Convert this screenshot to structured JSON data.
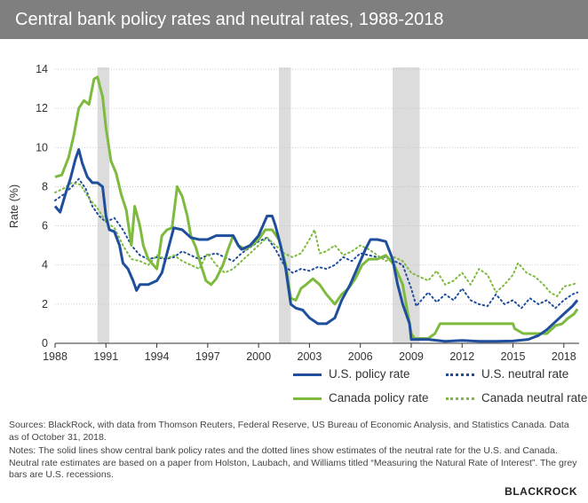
{
  "header": {
    "title": "Central bank policy rates and neutral rates, 1988-2018"
  },
  "chart_data": {
    "type": "line",
    "title": "Central bank policy rates and neutral rates, 1988-2018",
    "ylabel": "Rate (%)",
    "xlabel": "",
    "xlim": [
      1988,
      2018.9
    ],
    "ylim": [
      0,
      14
    ],
    "x_ticks": [
      1988,
      1991,
      1994,
      1997,
      2000,
      2003,
      2006,
      2009,
      2012,
      2015,
      2018
    ],
    "y_ticks": [
      0,
      2,
      4,
      6,
      8,
      10,
      12,
      14
    ],
    "grid": "horizontal",
    "recessions": [
      [
        1990.5,
        1991.2
      ],
      [
        2001.2,
        2001.9
      ],
      [
        2007.9,
        2009.5
      ]
    ],
    "series": [
      {
        "name": "U.S. policy rate",
        "color": "#1f4e9c",
        "style": "solid",
        "points": [
          [
            1988,
            7.0
          ],
          [
            1988.3,
            6.7
          ],
          [
            1988.6,
            7.6
          ],
          [
            1988.9,
            8.4
          ],
          [
            1989.2,
            9.4
          ],
          [
            1989.4,
            9.9
          ],
          [
            1989.6,
            9.2
          ],
          [
            1989.9,
            8.5
          ],
          [
            1990.2,
            8.2
          ],
          [
            1990.5,
            8.2
          ],
          [
            1990.8,
            8.0
          ],
          [
            1991.0,
            6.5
          ],
          [
            1991.2,
            5.8
          ],
          [
            1991.5,
            5.7
          ],
          [
            1991.8,
            5.0
          ],
          [
            1992.0,
            4.1
          ],
          [
            1992.3,
            3.8
          ],
          [
            1992.6,
            3.2
          ],
          [
            1992.8,
            2.7
          ],
          [
            1993.0,
            3.0
          ],
          [
            1993.5,
            3.0
          ],
          [
            1994.0,
            3.2
          ],
          [
            1994.3,
            3.6
          ],
          [
            1994.6,
            4.6
          ],
          [
            1995.0,
            5.9
          ],
          [
            1995.5,
            5.8
          ],
          [
            1996.0,
            5.4
          ],
          [
            1996.5,
            5.3
          ],
          [
            1997.0,
            5.3
          ],
          [
            1997.5,
            5.5
          ],
          [
            1998.0,
            5.5
          ],
          [
            1998.5,
            5.5
          ],
          [
            1998.8,
            5.0
          ],
          [
            1999.0,
            4.8
          ],
          [
            1999.5,
            5.0
          ],
          [
            2000.0,
            5.5
          ],
          [
            2000.5,
            6.5
          ],
          [
            2000.8,
            6.5
          ],
          [
            2001.0,
            6.0
          ],
          [
            2001.3,
            5.0
          ],
          [
            2001.6,
            3.8
          ],
          [
            2001.9,
            2.0
          ],
          [
            2002.2,
            1.8
          ],
          [
            2002.6,
            1.7
          ],
          [
            2003.0,
            1.3
          ],
          [
            2003.5,
            1.0
          ],
          [
            2004.0,
            1.0
          ],
          [
            2004.5,
            1.3
          ],
          [
            2004.9,
            2.2
          ],
          [
            2005.4,
            3.0
          ],
          [
            2005.9,
            4.0
          ],
          [
            2006.3,
            4.8
          ],
          [
            2006.6,
            5.3
          ],
          [
            2007.0,
            5.3
          ],
          [
            2007.5,
            5.2
          ],
          [
            2007.9,
            4.3
          ],
          [
            2008.2,
            3.0
          ],
          [
            2008.5,
            2.0
          ],
          [
            2008.9,
            1.0
          ],
          [
            2009.0,
            0.2
          ],
          [
            2010,
            0.2
          ],
          [
            2011,
            0.1
          ],
          [
            2012,
            0.15
          ],
          [
            2013,
            0.1
          ],
          [
            2014,
            0.1
          ],
          [
            2015,
            0.12
          ],
          [
            2015.9,
            0.2
          ],
          [
            2016.5,
            0.4
          ],
          [
            2017.0,
            0.7
          ],
          [
            2017.5,
            1.1
          ],
          [
            2018.0,
            1.5
          ],
          [
            2018.5,
            1.9
          ],
          [
            2018.8,
            2.2
          ]
        ]
      },
      {
        "name": "U.S. neutral rate",
        "color": "#1f4e9c",
        "style": "dotted",
        "points": [
          [
            1988,
            7.3
          ],
          [
            1988.5,
            7.6
          ],
          [
            1989.0,
            8.0
          ],
          [
            1989.4,
            8.4
          ],
          [
            1989.8,
            7.9
          ],
          [
            1990.2,
            7.0
          ],
          [
            1990.6,
            6.5
          ],
          [
            1991.0,
            6.2
          ],
          [
            1991.5,
            6.4
          ],
          [
            1992.0,
            5.8
          ],
          [
            1992.5,
            5.0
          ],
          [
            1993.0,
            4.5
          ],
          [
            1993.5,
            4.3
          ],
          [
            1994.0,
            4.4
          ],
          [
            1994.5,
            4.3
          ],
          [
            1995.0,
            4.4
          ],
          [
            1995.5,
            4.7
          ],
          [
            1996.0,
            4.5
          ],
          [
            1996.5,
            4.3
          ],
          [
            1997.0,
            4.5
          ],
          [
            1997.5,
            4.6
          ],
          [
            1998.0,
            4.4
          ],
          [
            1998.5,
            4.2
          ],
          [
            1999.0,
            4.6
          ],
          [
            1999.5,
            4.9
          ],
          [
            2000.0,
            5.2
          ],
          [
            2000.5,
            5.4
          ],
          [
            2001.0,
            4.8
          ],
          [
            2001.5,
            4.0
          ],
          [
            2002.0,
            3.6
          ],
          [
            2002.5,
            3.8
          ],
          [
            2003.0,
            3.7
          ],
          [
            2003.5,
            3.9
          ],
          [
            2004.0,
            3.8
          ],
          [
            2004.5,
            4.0
          ],
          [
            2005.0,
            4.4
          ],
          [
            2005.5,
            4.2
          ],
          [
            2006.0,
            4.6
          ],
          [
            2006.5,
            4.5
          ],
          [
            2007.0,
            4.4
          ],
          [
            2007.5,
            4.4
          ],
          [
            2008.0,
            4.2
          ],
          [
            2008.5,
            4.0
          ],
          [
            2009.0,
            2.8
          ],
          [
            2009.3,
            1.9
          ],
          [
            2009.7,
            2.3
          ],
          [
            2010.0,
            2.6
          ],
          [
            2010.5,
            2.1
          ],
          [
            2011.0,
            2.5
          ],
          [
            2011.5,
            2.2
          ],
          [
            2012.0,
            2.8
          ],
          [
            2012.5,
            2.2
          ],
          [
            2013.0,
            2.0
          ],
          [
            2013.5,
            1.9
          ],
          [
            2014.0,
            2.5
          ],
          [
            2014.5,
            2.0
          ],
          [
            2015.0,
            2.2
          ],
          [
            2015.5,
            1.8
          ],
          [
            2016.0,
            2.3
          ],
          [
            2016.5,
            2.0
          ],
          [
            2017.0,
            2.2
          ],
          [
            2017.5,
            1.8
          ],
          [
            2018.0,
            2.2
          ],
          [
            2018.5,
            2.5
          ],
          [
            2018.8,
            2.6
          ]
        ]
      },
      {
        "name": "Canada policy rate",
        "color": "#7dba3e",
        "style": "solid",
        "points": [
          [
            1988,
            8.5
          ],
          [
            1988.4,
            8.6
          ],
          [
            1988.8,
            9.5
          ],
          [
            1989.1,
            10.6
          ],
          [
            1989.4,
            12.0
          ],
          [
            1989.7,
            12.4
          ],
          [
            1990.0,
            12.2
          ],
          [
            1990.3,
            13.5
          ],
          [
            1990.5,
            13.6
          ],
          [
            1990.8,
            12.6
          ],
          [
            1991.0,
            11.0
          ],
          [
            1991.3,
            9.3
          ],
          [
            1991.6,
            8.7
          ],
          [
            1991.9,
            7.6
          ],
          [
            1992.2,
            6.8
          ],
          [
            1992.5,
            5.0
          ],
          [
            1992.7,
            7.0
          ],
          [
            1993.0,
            6.0
          ],
          [
            1993.2,
            5.0
          ],
          [
            1993.5,
            4.3
          ],
          [
            1993.8,
            4.0
          ],
          [
            1994.0,
            3.8
          ],
          [
            1994.3,
            5.5
          ],
          [
            1994.6,
            5.8
          ],
          [
            1994.9,
            5.9
          ],
          [
            1995.2,
            8.0
          ],
          [
            1995.5,
            7.5
          ],
          [
            1995.8,
            6.5
          ],
          [
            1996.0,
            5.5
          ],
          [
            1996.3,
            4.9
          ],
          [
            1996.6,
            4.0
          ],
          [
            1996.9,
            3.2
          ],
          [
            1997.2,
            3.0
          ],
          [
            1997.5,
            3.3
          ],
          [
            1997.9,
            4.0
          ],
          [
            1998.2,
            4.8
          ],
          [
            1998.5,
            5.5
          ],
          [
            1998.8,
            5.0
          ],
          [
            1999.2,
            4.8
          ],
          [
            1999.6,
            5.0
          ],
          [
            2000.0,
            5.3
          ],
          [
            2000.4,
            5.8
          ],
          [
            2000.8,
            5.8
          ],
          [
            2001.2,
            5.3
          ],
          [
            2001.6,
            4.0
          ],
          [
            2001.9,
            2.3
          ],
          [
            2002.2,
            2.2
          ],
          [
            2002.5,
            2.8
          ],
          [
            2002.8,
            3.0
          ],
          [
            2003.2,
            3.3
          ],
          [
            2003.6,
            3.0
          ],
          [
            2004.0,
            2.5
          ],
          [
            2004.5,
            2.0
          ],
          [
            2004.9,
            2.5
          ],
          [
            2005.3,
            2.8
          ],
          [
            2005.7,
            3.3
          ],
          [
            2006.1,
            4.0
          ],
          [
            2006.5,
            4.3
          ],
          [
            2007.0,
            4.3
          ],
          [
            2007.5,
            4.5
          ],
          [
            2008.0,
            4.0
          ],
          [
            2008.5,
            3.0
          ],
          [
            2008.8,
            1.5
          ],
          [
            2009.0,
            0.5
          ],
          [
            2009.2,
            0.25
          ],
          [
            2010.0,
            0.25
          ],
          [
            2010.4,
            0.5
          ],
          [
            2010.7,
            1.0
          ],
          [
            2011,
            1.0
          ],
          [
            2012,
            1.0
          ],
          [
            2013,
            1.0
          ],
          [
            2014,
            1.0
          ],
          [
            2015,
            1.0
          ],
          [
            2015.1,
            0.75
          ],
          [
            2015.6,
            0.5
          ],
          [
            2016,
            0.5
          ],
          [
            2017.0,
            0.5
          ],
          [
            2017.5,
            0.9
          ],
          [
            2017.9,
            1.0
          ],
          [
            2018.2,
            1.25
          ],
          [
            2018.6,
            1.5
          ],
          [
            2018.8,
            1.75
          ]
        ]
      },
      {
        "name": "Canada neutral rate",
        "color": "#7dba3e",
        "style": "dotted",
        "points": [
          [
            1988,
            7.7
          ],
          [
            1988.5,
            7.9
          ],
          [
            1989.0,
            8.2
          ],
          [
            1989.5,
            8.1
          ],
          [
            1990.0,
            7.4
          ],
          [
            1990.5,
            6.9
          ],
          [
            1991.0,
            6.2
          ],
          [
            1991.5,
            5.9
          ],
          [
            1992.0,
            5.0
          ],
          [
            1992.5,
            4.3
          ],
          [
            1993.0,
            4.2
          ],
          [
            1993.5,
            4.0
          ],
          [
            1994.0,
            4.5
          ],
          [
            1994.5,
            4.3
          ],
          [
            1995.0,
            4.5
          ],
          [
            1995.5,
            4.2
          ],
          [
            1996.0,
            4.0
          ],
          [
            1996.5,
            3.8
          ],
          [
            1997.0,
            4.6
          ],
          [
            1997.5,
            4.0
          ],
          [
            1998.0,
            3.6
          ],
          [
            1998.5,
            3.8
          ],
          [
            1999.0,
            4.2
          ],
          [
            1999.5,
            4.6
          ],
          [
            2000.0,
            5.0
          ],
          [
            2000.5,
            5.4
          ],
          [
            2001.0,
            5.0
          ],
          [
            2001.5,
            4.6
          ],
          [
            2002.0,
            4.4
          ],
          [
            2002.5,
            4.6
          ],
          [
            2003.0,
            5.3
          ],
          [
            2003.3,
            5.8
          ],
          [
            2003.6,
            4.6
          ],
          [
            2004.0,
            4.7
          ],
          [
            2004.5,
            5.0
          ],
          [
            2005.0,
            4.5
          ],
          [
            2005.5,
            4.7
          ],
          [
            2006.0,
            5.0
          ],
          [
            2006.5,
            4.8
          ],
          [
            2007.0,
            4.5
          ],
          [
            2007.5,
            4.2
          ],
          [
            2008.0,
            4.4
          ],
          [
            2008.5,
            4.2
          ],
          [
            2009.0,
            3.6
          ],
          [
            2009.5,
            3.4
          ],
          [
            2010.0,
            3.2
          ],
          [
            2010.5,
            3.7
          ],
          [
            2011.0,
            3.0
          ],
          [
            2011.5,
            3.2
          ],
          [
            2012.0,
            3.6
          ],
          [
            2012.5,
            3.0
          ],
          [
            2013.0,
            3.8
          ],
          [
            2013.5,
            3.5
          ],
          [
            2014.0,
            2.6
          ],
          [
            2014.5,
            3.0
          ],
          [
            2015.0,
            3.5
          ],
          [
            2015.3,
            4.1
          ],
          [
            2015.8,
            3.6
          ],
          [
            2016.3,
            3.4
          ],
          [
            2016.8,
            3.0
          ],
          [
            2017.2,
            2.6
          ],
          [
            2017.6,
            2.4
          ],
          [
            2018.0,
            2.9
          ],
          [
            2018.5,
            3.0
          ],
          [
            2018.8,
            3.1
          ]
        ]
      }
    ]
  },
  "legend": {
    "items": [
      {
        "label": "U.S. policy rate",
        "color": "#1f4e9c",
        "style": "solid"
      },
      {
        "label": "U.S. neutral rate",
        "color": "#1f4e9c",
        "style": "dotted"
      },
      {
        "label": "Canada policy rate",
        "color": "#7dba3e",
        "style": "solid"
      },
      {
        "label": "Canada neutral rate",
        "color": "#7dba3e",
        "style": "dotted"
      }
    ]
  },
  "footer": {
    "sources": "Sources: BlackRock, with data from Thomson Reuters, Federal Reserve, US Bureau of Economic Analysis, and Statistics Canada. Data as of October 31, 2018.",
    "notes": "Notes: The solid lines show central bank policy rates and the dotted lines show estimates of the neutral rate for the U.S. and Canada. Neutral rate estimates are based on a paper from Holston, Laubach, and Williams titled “Measuring the Natural Rate of Interest”. The grey bars are U.S. recessions.",
    "logo": "BLACKROCK"
  }
}
